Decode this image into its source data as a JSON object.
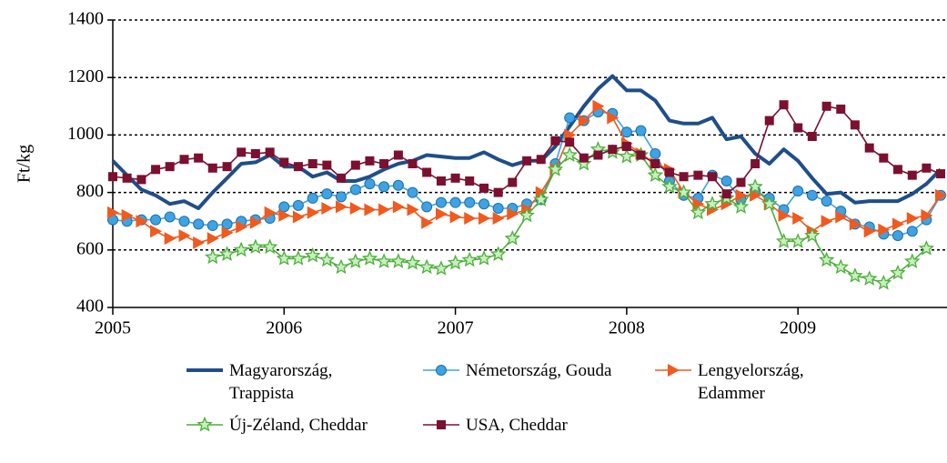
{
  "chart_data": {
    "type": "line",
    "ylabel": "Ft/kg",
    "xlim": [
      2005,
      2009.87
    ],
    "xticks": [
      2005,
      2006,
      2007,
      2008,
      2009
    ],
    "ylim": [
      400,
      1400
    ],
    "yticks": [
      400,
      600,
      800,
      1000,
      1200,
      1400
    ],
    "grid": true,
    "legend": "bottom",
    "x": [
      2005,
      2005.083,
      2005.167,
      2005.25,
      2005.333,
      2005.417,
      2005.5,
      2005.583,
      2005.667,
      2005.75,
      2005.833,
      2005.917,
      2006,
      2006.083,
      2006.167,
      2006.25,
      2006.333,
      2006.417,
      2006.5,
      2006.583,
      2006.667,
      2006.75,
      2006.833,
      2006.917,
      2007,
      2007.083,
      2007.167,
      2007.25,
      2007.333,
      2007.417,
      2007.5,
      2007.583,
      2007.667,
      2007.75,
      2007.833,
      2007.917,
      2008,
      2008.083,
      2008.167,
      2008.25,
      2008.333,
      2008.417,
      2008.5,
      2008.583,
      2008.667,
      2008.75,
      2008.833,
      2008.917,
      2009,
      2009.083,
      2009.167,
      2009.25,
      2009.333,
      2009.417,
      2009.5,
      2009.583,
      2009.667,
      2009.75,
      2009.833
    ],
    "series": [
      {
        "name": "Magyarország, Trappista",
        "color": "#1f4e89",
        "marker": "none",
        "values": [
          910,
          860,
          810,
          790,
          760,
          770,
          745,
          800,
          850,
          900,
          905,
          930,
          890,
          890,
          855,
          870,
          840,
          840,
          855,
          880,
          900,
          910,
          930,
          925,
          920,
          920,
          940,
          915,
          895,
          910,
          910,
          960,
          1030,
          1100,
          1160,
          1205,
          1155,
          1155,
          1120,
          1050,
          1040,
          1040,
          1060,
          985,
          995,
          935,
          900,
          950,
          910,
          850,
          795,
          800,
          765,
          770,
          770,
          770,
          795,
          830,
          880
        ]
      },
      {
        "name": "Németország, Gouda",
        "color": "#3fa3e3",
        "marker": "circle",
        "values": [
          705,
          700,
          705,
          705,
          715,
          700,
          690,
          685,
          690,
          700,
          705,
          710,
          750,
          755,
          780,
          795,
          785,
          810,
          830,
          820,
          825,
          800,
          750,
          765,
          765,
          765,
          760,
          745,
          745,
          760,
          775,
          900,
          1060,
          1050,
          1080,
          1075,
          1010,
          1015,
          935,
          840,
          790,
          780,
          860,
          840,
          775,
          805,
          780,
          740,
          805,
          790,
          770,
          735,
          690,
          680,
          655,
          650,
          665,
          705,
          790
        ]
      },
      {
        "name": "Lengyelország, Edammer",
        "color": "#f05a1e",
        "marker": "triangle",
        "values": [
          730,
          720,
          700,
          665,
          640,
          650,
          625,
          640,
          660,
          680,
          695,
          730,
          720,
          715,
          730,
          745,
          750,
          745,
          740,
          740,
          750,
          740,
          695,
          725,
          715,
          710,
          710,
          710,
          725,
          740,
          800,
          880,
          1000,
          1050,
          1100,
          1060,
          970,
          935,
          900,
          880,
          800,
          760,
          740,
          760,
          790,
          790,
          760,
          720,
          710,
          665,
          700,
          715,
          690,
          665,
          670,
          690,
          710,
          720,
          790
        ]
      },
      {
        "name": "Új-Zéland, Cheddar",
        "color": "#4caf3a",
        "marker": "star",
        "values": [
          null,
          null,
          null,
          null,
          null,
          null,
          null,
          575,
          585,
          600,
          610,
          610,
          570,
          570,
          580,
          565,
          540,
          560,
          570,
          560,
          560,
          555,
          540,
          535,
          555,
          565,
          570,
          585,
          640,
          720,
          775,
          880,
          930,
          900,
          950,
          940,
          925,
          930,
          860,
          820,
          800,
          730,
          760,
          780,
          750,
          820,
          760,
          630,
          630,
          650,
          565,
          540,
          510,
          500,
          485,
          520,
          560,
          605,
          null
        ]
      },
      {
        "name": "USA, Cheddar",
        "color": "#7b1030",
        "marker": "square",
        "values": [
          855,
          850,
          845,
          880,
          890,
          915,
          920,
          885,
          890,
          940,
          935,
          940,
          905,
          890,
          900,
          895,
          850,
          895,
          910,
          900,
          930,
          900,
          870,
          840,
          850,
          840,
          815,
          800,
          835,
          910,
          915,
          980,
          975,
          920,
          930,
          950,
          960,
          930,
          900,
          870,
          855,
          860,
          855,
          795,
          835,
          900,
          1050,
          1105,
          1025,
          995,
          1100,
          1090,
          1035,
          955,
          920,
          880,
          860,
          885,
          865
        ]
      }
    ]
  }
}
